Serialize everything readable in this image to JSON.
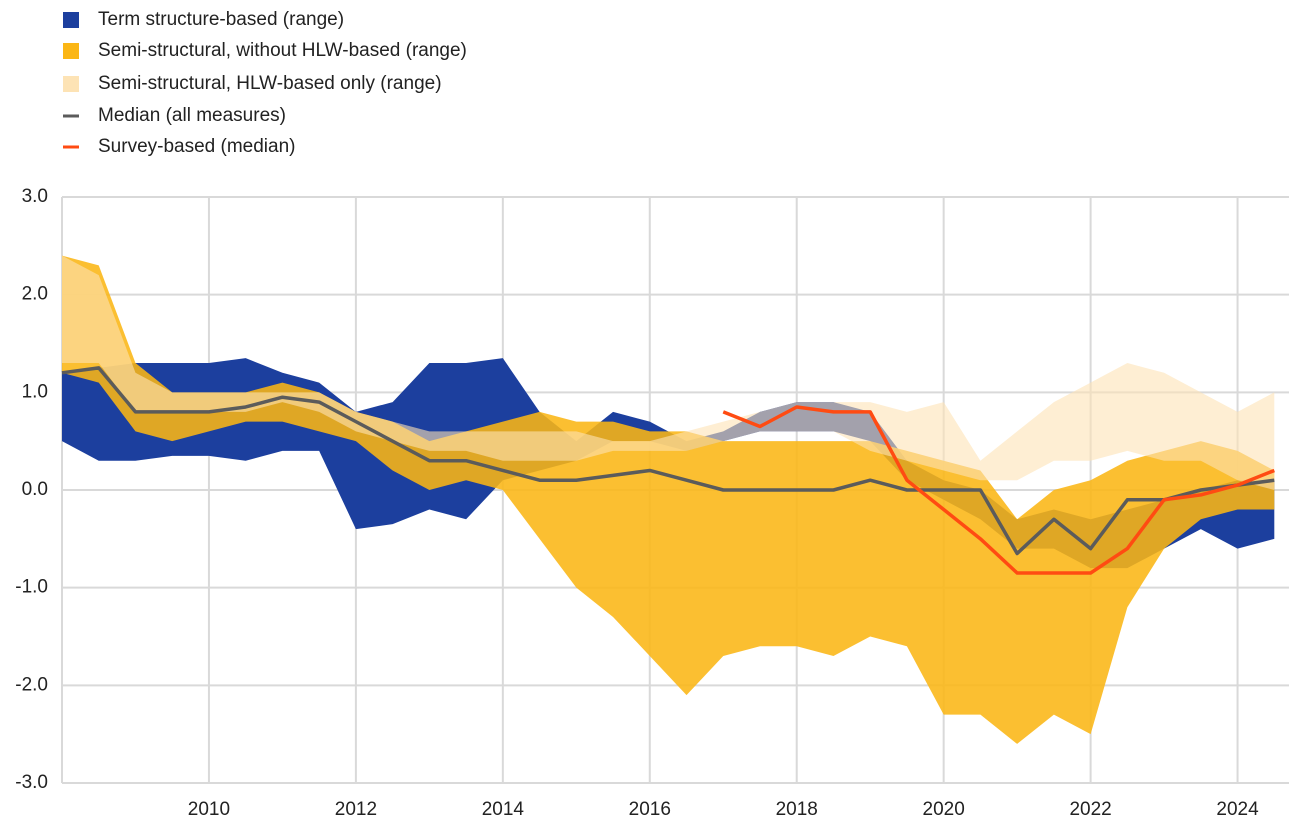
{
  "chart_data": {
    "type": "line",
    "x": [
      2008.0,
      2008.5,
      2009.0,
      2009.5,
      2010.0,
      2010.5,
      2011.0,
      2011.5,
      2012.0,
      2012.5,
      2013.0,
      2013.5,
      2014.0,
      2014.5,
      2015.0,
      2015.5,
      2016.0,
      2016.5,
      2017.0,
      2017.5,
      2018.0,
      2018.5,
      2019.0,
      2019.5,
      2020.0,
      2020.5,
      2021.0,
      2021.5,
      2022.0,
      2022.5,
      2023.0,
      2023.5,
      2024.0,
      2024.5
    ],
    "series": [
      {
        "name": "Term structure-based (range)",
        "type": "range",
        "color": "#1c3f9e",
        "low": [
          0.5,
          0.3,
          0.3,
          0.35,
          0.35,
          0.3,
          0.4,
          0.4,
          -0.4,
          -0.35,
          -0.2,
          -0.3,
          0.1,
          0.2,
          0.3,
          0.5,
          0.5,
          0.4,
          0.5,
          0.6,
          0.6,
          0.6,
          0.5,
          0.1,
          -0.1,
          -0.3,
          -0.6,
          -0.6,
          -0.8,
          -0.8,
          -0.6,
          -0.4,
          -0.6,
          -0.5
        ],
        "high": [
          1.2,
          1.25,
          1.3,
          1.3,
          1.3,
          1.35,
          1.2,
          1.1,
          0.8,
          0.9,
          1.3,
          1.3,
          1.35,
          0.8,
          0.5,
          0.8,
          0.7,
          0.5,
          0.6,
          0.8,
          0.9,
          0.9,
          0.8,
          0.3,
          0.1,
          0.0,
          -0.3,
          -0.2,
          -0.3,
          -0.2,
          -0.1,
          0.0,
          0.1,
          0.1
        ]
      },
      {
        "name": "Semi-structural, without HLW-based (range)",
        "type": "range",
        "color": "#fbb615",
        "low": [
          1.2,
          1.1,
          0.6,
          0.5,
          0.6,
          0.7,
          0.7,
          0.6,
          0.5,
          0.2,
          0.0,
          0.1,
          0.0,
          -0.5,
          -1.0,
          -1.3,
          -1.7,
          -2.1,
          -1.7,
          -1.6,
          -1.6,
          -1.7,
          -1.5,
          -1.6,
          -2.3,
          -2.3,
          -2.6,
          -2.3,
          -2.5,
          -1.2,
          -0.6,
          -0.3,
          -0.2,
          -0.2
        ],
        "high": [
          2.4,
          2.3,
          1.3,
          1.0,
          1.0,
          1.0,
          1.1,
          1.0,
          0.8,
          0.7,
          0.5,
          0.6,
          0.7,
          0.8,
          0.7,
          0.7,
          0.6,
          0.6,
          0.5,
          0.5,
          0.5,
          0.5,
          0.5,
          0.4,
          0.3,
          0.2,
          -0.3,
          0.0,
          0.1,
          0.3,
          0.4,
          0.5,
          0.4,
          0.2
        ]
      },
      {
        "name": "Semi-structural, HLW-based only (range)",
        "type": "range",
        "color": "#fde3b5",
        "low": [
          1.3,
          1.3,
          0.8,
          0.8,
          0.8,
          0.8,
          0.9,
          0.8,
          0.6,
          0.5,
          0.4,
          0.4,
          0.3,
          0.3,
          0.3,
          0.4,
          0.4,
          0.4,
          0.5,
          0.6,
          0.6,
          0.6,
          0.4,
          0.3,
          0.2,
          0.1,
          0.1,
          0.3,
          0.3,
          0.4,
          0.3,
          0.3,
          0.1,
          0.0
        ],
        "high": [
          2.4,
          2.2,
          1.2,
          1.0,
          1.0,
          1.0,
          1.0,
          1.0,
          0.8,
          0.7,
          0.6,
          0.6,
          0.6,
          0.6,
          0.6,
          0.5,
          0.5,
          0.6,
          0.7,
          0.8,
          0.9,
          0.9,
          0.9,
          0.8,
          0.9,
          0.3,
          0.6,
          0.9,
          1.1,
          1.3,
          1.2,
          1.0,
          0.8,
          1.0
        ]
      },
      {
        "name": "Median (all measures)",
        "type": "line",
        "color": "#5b5b5b",
        "values": [
          1.2,
          1.25,
          0.8,
          0.8,
          0.8,
          0.85,
          0.95,
          0.9,
          0.7,
          0.5,
          0.3,
          0.3,
          0.2,
          0.1,
          0.1,
          0.15,
          0.2,
          0.1,
          0.0,
          0.0,
          0.0,
          0.0,
          0.1,
          0.0,
          0.0,
          0.0,
          -0.65,
          -0.3,
          -0.6,
          -0.1,
          -0.1,
          0.0,
          0.05,
          0.1
        ]
      },
      {
        "name": "Survey-based (median)",
        "type": "line",
        "color": "#ff4b12",
        "values": [
          null,
          null,
          null,
          null,
          null,
          null,
          null,
          null,
          null,
          null,
          null,
          null,
          null,
          null,
          null,
          null,
          null,
          null,
          0.8,
          0.65,
          0.85,
          0.8,
          0.8,
          0.1,
          -0.2,
          -0.5,
          -0.85,
          -0.85,
          -0.85,
          -0.6,
          -0.1,
          -0.05,
          0.05,
          0.2
        ]
      }
    ],
    "xlim": [
      2008,
      2024.7
    ],
    "xticks": [
      2010,
      2012,
      2014,
      2016,
      2018,
      2020,
      2022,
      2024
    ],
    "ylim": [
      -3,
      3
    ],
    "yticks": [
      {
        "value": -3,
        "label": "-3.0"
      },
      {
        "value": -2,
        "label": "-2.0"
      },
      {
        "value": -1,
        "label": "-1.0"
      },
      {
        "value": 0,
        "label": "0.0"
      },
      {
        "value": 1,
        "label": "1.0"
      },
      {
        "value": 2,
        "label": "2.0"
      },
      {
        "value": 3,
        "label": "3.0"
      }
    ],
    "grid": true,
    "legend": "top-left"
  }
}
